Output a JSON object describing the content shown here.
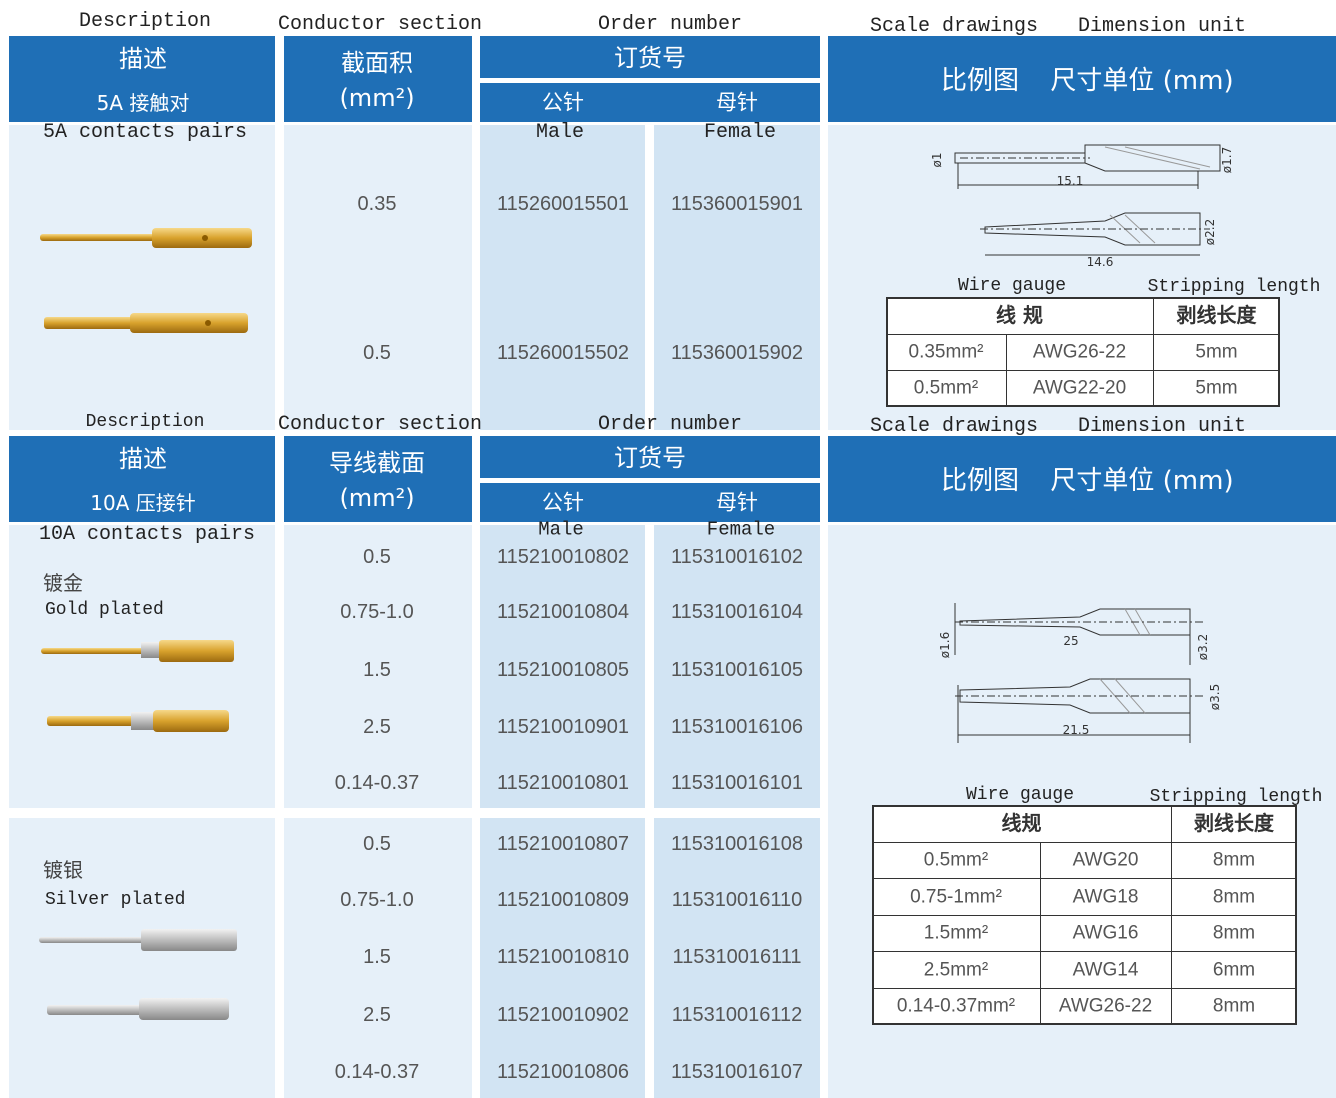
{
  "section_5a": {
    "labels": {
      "description": "Description",
      "conductor": "Conductor section",
      "order": "Order number",
      "scale": "Scale drawings",
      "dimension": "Dimension unit"
    },
    "header": {
      "desc_cn": "描述",
      "desc_sub": "5A 接触对",
      "conductor_cn": "截面积",
      "conductor_unit": "(mm²)",
      "order_cn": "订货号",
      "male_cn": "公针",
      "female_cn": "母针",
      "scale_cn": "比例图",
      "dimension_cn": "尺寸单位 (mm)"
    },
    "description_en": "5A contacts pairs",
    "male_en": "Male",
    "female_en": "Female",
    "rows": [
      {
        "section": "0.35",
        "male": "115260015501",
        "female": "115360015901"
      },
      {
        "section": "0.5",
        "male": "115260015502",
        "female": "115360015902"
      }
    ],
    "drawing_dims": [
      "ø1",
      "15.1",
      "ø1.7",
      "14.6",
      "ø2.2"
    ],
    "gauge_table": {
      "caption_left": "Wire gauge",
      "caption_right": "Stripping length",
      "headers": [
        "线  规",
        "剥线长度"
      ],
      "rows": [
        [
          "0.35mm²",
          "AWG26-22",
          "5mm"
        ],
        [
          "0.5mm²",
          "AWG22-20",
          "5mm"
        ]
      ]
    }
  },
  "section_10a": {
    "labels": {
      "description": "Description",
      "conductor": "Conductor section",
      "order": "Order number",
      "scale": "Scale drawings",
      "dimension": "Dimension unit"
    },
    "header": {
      "desc_cn": "描述",
      "desc_sub": "10A 压接针",
      "conductor_cn": "导线截面",
      "conductor_unit": "(mm²)",
      "order_cn": "订货号",
      "male_cn": "公针",
      "female_cn": "母针",
      "scale_cn": "比例图",
      "dimension_cn": "尺寸单位 (mm)"
    },
    "description_en": "10A contacts pairs",
    "male_en": "Male",
    "female_en": "Female",
    "groups": [
      {
        "label_cn": "镀金",
        "label_en": "Gold plated",
        "rows": [
          {
            "section": "0.5",
            "male": "115210010802",
            "female": "115310016102"
          },
          {
            "section": "0.75-1.0",
            "male": "115210010804",
            "female": "115310016104"
          },
          {
            "section": "1.5",
            "male": "115210010805",
            "female": "115310016105"
          },
          {
            "section": "2.5",
            "male": "115210010901",
            "female": "115310016106"
          },
          {
            "section": "0.14-0.37",
            "male": "115210010801",
            "female": "115310016101"
          }
        ]
      },
      {
        "label_cn": "镀银",
        "label_en": "Silver plated",
        "rows": [
          {
            "section": "0.5",
            "male": "115210010807",
            "female": "115310016108"
          },
          {
            "section": "0.75-1.0",
            "male": "115210010809",
            "female": "115310016110"
          },
          {
            "section": "1.5",
            "male": "115210010810",
            "female": "115310016111"
          },
          {
            "section": "2.5",
            "male": "115210010902",
            "female": "115310016112"
          },
          {
            "section": "0.14-0.37",
            "male": "115210010806",
            "female": "115310016107"
          }
        ]
      }
    ],
    "drawing_dims": [
      "ø1.6",
      "25",
      "ø3.2",
      "ø3.5",
      "21.5"
    ],
    "gauge_table": {
      "caption_left": "Wire gauge",
      "caption_right": "Stripping length",
      "headers": [
        "线规",
        "剥线长度"
      ],
      "rows": [
        [
          "0.5mm²",
          "AWG20",
          "8mm"
        ],
        [
          "0.75-1mm²",
          "AWG18",
          "8mm"
        ],
        [
          "1.5mm²",
          "AWG16",
          "8mm"
        ],
        [
          "2.5mm²",
          "AWG14",
          "6mm"
        ],
        [
          "0.14-0.37mm²",
          "AWG26-22",
          "8mm"
        ]
      ]
    }
  }
}
